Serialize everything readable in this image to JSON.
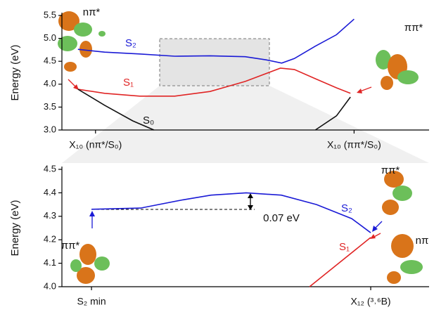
{
  "chart_data": [
    {
      "type": "line",
      "ylabel": "Energy (eV)",
      "xlim": [
        -1.3,
        12.9
      ],
      "xticks": [
        {
          "value": 0,
          "label": "X₁₀ (nπ*/S₀)"
        },
        {
          "value": 10,
          "label": "X₁₀ (ππ*/S₀)"
        }
      ],
      "ylim": [
        3.0,
        5.5
      ],
      "yticks": [
        {
          "value": 3,
          "label": "3.0"
        },
        3.5,
        {
          "value": 4,
          "label": "4.0"
        },
        4.5,
        {
          "value": 5,
          "label": "5.0"
        },
        5.5
      ],
      "series": [
        {
          "name": "S₂",
          "color": "#1a1ad6",
          "x": [
            -0.68,
            0.35,
            1.71,
            3.07,
            4.43,
            5.79,
            6.6,
            7.2,
            7.69,
            8.5,
            9.32,
            10
          ],
          "values": [
            4.76,
            4.7,
            4.66,
            4.61,
            4.62,
            4.6,
            4.53,
            4.46,
            4.56,
            4.83,
            5.08,
            5.42
          ]
        },
        {
          "name": "S₁",
          "color": "#e02424",
          "x": [
            -0.68,
            0.35,
            1.71,
            3.07,
            4.43,
            5.79,
            7.15,
            7.69,
            8.5,
            9.32,
            9.86
          ],
          "values": [
            3.89,
            3.8,
            3.74,
            3.74,
            3.84,
            4.06,
            4.35,
            4.32,
            4.12,
            3.92,
            3.8
          ]
        },
        {
          "name": "S₀",
          "color": "#111111",
          "x": [
            -0.68,
            0.35,
            1.44,
            2.26,
            null,
            8.5,
            9.32,
            9.86
          ],
          "values": [
            3.89,
            3.54,
            3.2,
            3.0,
            null,
            3.0,
            3.31,
            3.72
          ]
        }
      ],
      "annotations": [
        "nπ*",
        "ππ*"
      ]
    },
    {
      "type": "line",
      "ylabel": "Energy (eV)",
      "xlim": [
        -1.06,
        12.09
      ],
      "xticks": [
        {
          "value": 0,
          "label": "S₂ min"
        },
        {
          "value": 10,
          "label": "X₁₂ (³˒⁶B)"
        }
      ],
      "ylim": [
        4.0,
        4.5
      ],
      "yticks": [
        {
          "value": 4,
          "label": "4.0"
        },
        4.1,
        4.2,
        4.3,
        4.4,
        4.5
      ],
      "series": [
        {
          "name": "S₂",
          "color": "#1a1ad6",
          "x": [
            0,
            1.76,
            3.27,
            4.28,
            5.54,
            6.8,
            8.06,
            9.32,
            10
          ],
          "values": [
            4.33,
            4.335,
            4.37,
            4.39,
            4.4,
            4.39,
            4.35,
            4.29,
            4.23
          ]
        },
        {
          "name": "S₁",
          "color": "#e02424",
          "x": [
            7.81,
            10
          ],
          "values": [
            4.0,
            4.21
          ]
        }
      ],
      "annotations": [
        "ππ*",
        "ππ*",
        "nπ",
        "0.07 eV"
      ]
    }
  ]
}
